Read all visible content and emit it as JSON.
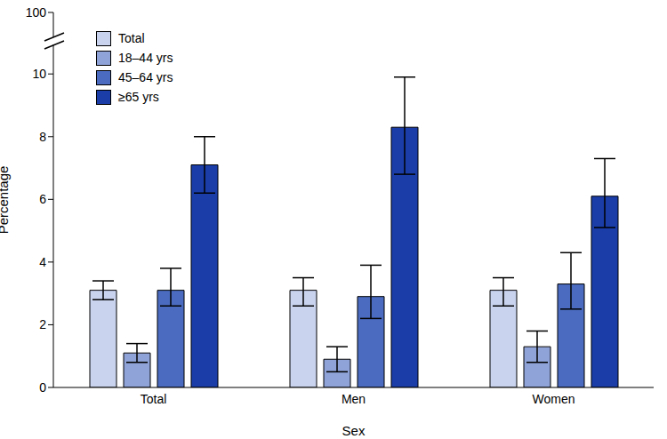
{
  "chart_data": {
    "type": "bar",
    "x_label": "Sex",
    "y_label": "Percentage",
    "categories": [
      "Total",
      "Men",
      "Women"
    ],
    "series": [
      {
        "name": "Total",
        "color": "#c9d3ee",
        "values": [
          3.1,
          3.1,
          3.1
        ],
        "ci": [
          [
            2.8,
            3.4
          ],
          [
            2.6,
            3.5
          ],
          [
            2.6,
            3.5
          ]
        ]
      },
      {
        "name": "18–44 yrs",
        "color": "#8fa3d8",
        "values": [
          1.1,
          0.9,
          1.3
        ],
        "ci": [
          [
            0.8,
            1.4
          ],
          [
            0.5,
            1.3
          ],
          [
            0.8,
            1.8
          ]
        ]
      },
      {
        "name": "45–64 yrs",
        "color": "#4a6bbf",
        "values": [
          3.1,
          2.9,
          3.3
        ],
        "ci": [
          [
            2.6,
            3.8
          ],
          [
            2.2,
            3.9
          ],
          [
            2.5,
            4.3
          ]
        ]
      },
      {
        "name": "≥65 yrs",
        "color": "#1a3da8",
        "values": [
          7.1,
          8.3,
          6.1
        ],
        "ci": [
          [
            6.2,
            8.0
          ],
          [
            6.8,
            9.9
          ],
          [
            5.1,
            7.3
          ]
        ]
      }
    ],
    "ylim": [
      0,
      100
    ],
    "yticks": [
      0,
      2,
      4,
      6,
      8,
      10,
      100
    ],
    "grid": false,
    "legend": "top-left"
  }
}
